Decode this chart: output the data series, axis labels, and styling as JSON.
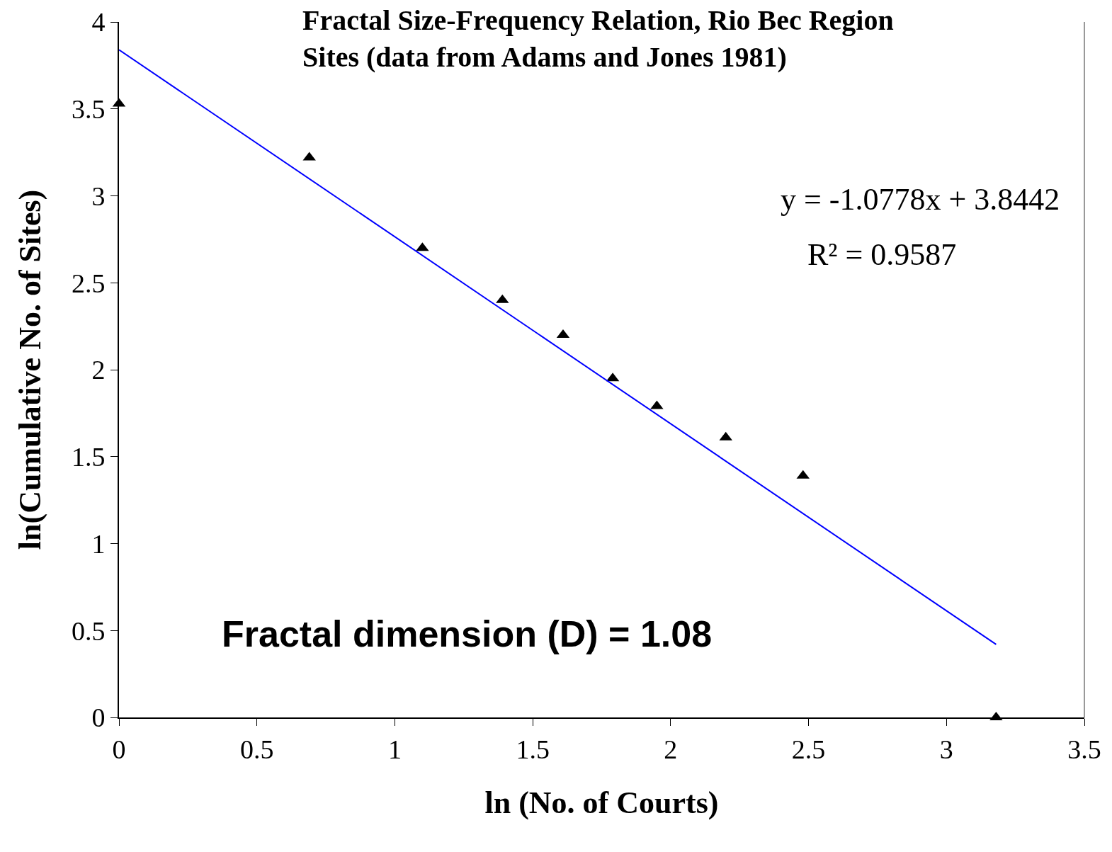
{
  "chart_data": {
    "type": "scatter",
    "title": "Fractal Size-Frequency Relation, Rio Bec Region Sites (data from Adams and Jones 1981)",
    "xlabel": "ln (No. of Courts)",
    "ylabel": "ln(Cumulative No. of Sites)",
    "x": [
      0,
      0.69,
      1.1,
      1.39,
      1.61,
      1.79,
      1.95,
      2.2,
      2.48,
      3.18
    ],
    "series": [
      {
        "color": "#000000",
        "marker": "triangle",
        "values": [
          3.53,
          3.22,
          2.7,
          2.4,
          2.2,
          1.95,
          1.79,
          1.61,
          1.39,
          0
        ]
      },
      {
        "type": "line",
        "color": "#0000ff",
        "x": [
          0,
          3.18
        ],
        "values": [
          3.84,
          0.42
        ]
      }
    ],
    "annotations": [
      "y = -1.0778x + 3.8442",
      "R² = 0.9587",
      "Fractal dimension (D) = 1.08"
    ],
    "xlim": [
      0,
      3.5
    ],
    "xticks": [
      0,
      0.5,
      1,
      1.5,
      2,
      2.5,
      3,
      3.5
    ],
    "ylim": [
      0,
      4
    ],
    "yticks": [
      0,
      0.5,
      1,
      1.5,
      2,
      2.5,
      3,
      3.5,
      4
    ],
    "grid": false
  }
}
